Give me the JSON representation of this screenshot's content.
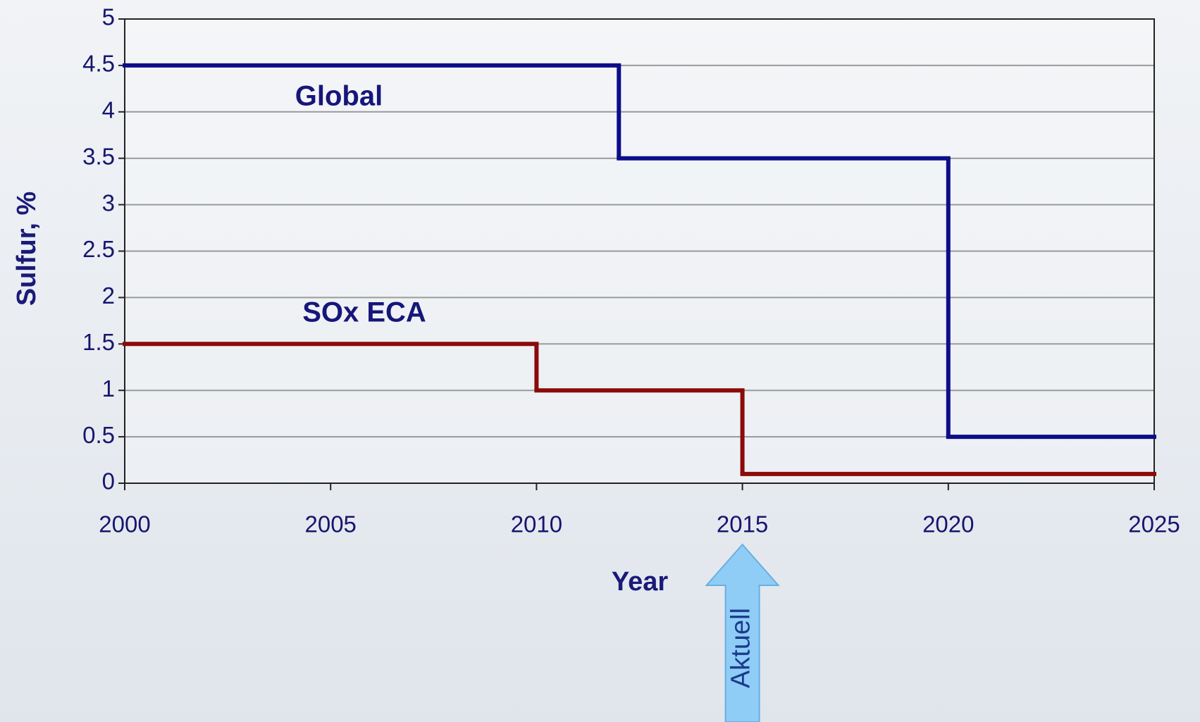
{
  "chart_data": {
    "type": "step",
    "xlabel": "Year",
    "ylabel": "Sulfur, %",
    "xlim": [
      2000,
      2025
    ],
    "xticks": [
      2000,
      2005,
      2010,
      2015,
      2020,
      2025
    ],
    "ylim": [
      0,
      5
    ],
    "yticks": [
      0,
      0.5,
      1,
      1.5,
      2,
      2.5,
      3,
      3.5,
      4,
      4.5,
      5
    ],
    "grid": true,
    "series": [
      {
        "name": "Global",
        "color": "#0d0d8a",
        "x": [
          2000,
          2012,
          2020,
          2025
        ],
        "values": [
          4.5,
          3.5,
          0.5,
          0.5
        ]
      },
      {
        "name": "SOx ECA",
        "color": "#8b0a0a",
        "x": [
          2000,
          2010,
          2015,
          2025
        ],
        "values": [
          1.5,
          1,
          0.1,
          0.1
        ]
      }
    ],
    "annotation": {
      "text": "Aktuell",
      "x": 2015
    }
  }
}
